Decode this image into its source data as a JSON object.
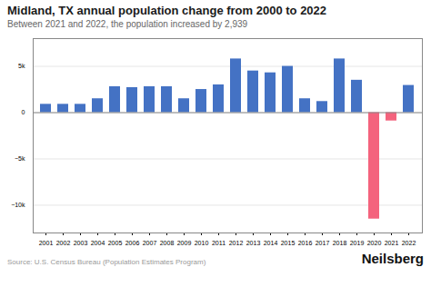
{
  "chart_data": {
    "type": "bar",
    "title": "Midland, TX annual population change from 2000 to 2022",
    "subtitle": "Between 2021 and 2022, the population increased by 2,939",
    "source": "Source: U.S. Census Bureau (Population Estimates Program)",
    "watermark": "Neilsberg",
    "categories": [
      "2001",
      "2002",
      "2003",
      "2004",
      "2005",
      "2006",
      "2007",
      "2008",
      "2009",
      "2010",
      "2011",
      "2012",
      "2013",
      "2014",
      "2015",
      "2016",
      "2017",
      "2018",
      "2019",
      "2020",
      "2021",
      "2022"
    ],
    "values": [
      900,
      900,
      900,
      1500,
      2800,
      2700,
      2800,
      2800,
      1500,
      2500,
      3000,
      5800,
      4500,
      4300,
      5000,
      1500,
      1200,
      5800,
      3500,
      -11500,
      -900,
      2939
    ],
    "colors": [
      "#4472C4",
      "#4472C4",
      "#4472C4",
      "#4472C4",
      "#4472C4",
      "#4472C4",
      "#4472C4",
      "#4472C4",
      "#4472C4",
      "#4472C4",
      "#4472C4",
      "#4472C4",
      "#4472C4",
      "#4472C4",
      "#4472C4",
      "#4472C4",
      "#4472C4",
      "#4472C4",
      "#4472C4",
      "#F4637D",
      "#F4637D",
      "#4472C4"
    ],
    "ylim": [
      -13000,
      8000
    ],
    "yticks": [
      {
        "value": -10000,
        "label": "−10k"
      },
      {
        "value": -5000,
        "label": "−5k"
      },
      0,
      {
        "value": 5000,
        "label": "5k"
      }
    ],
    "grid": true
  }
}
